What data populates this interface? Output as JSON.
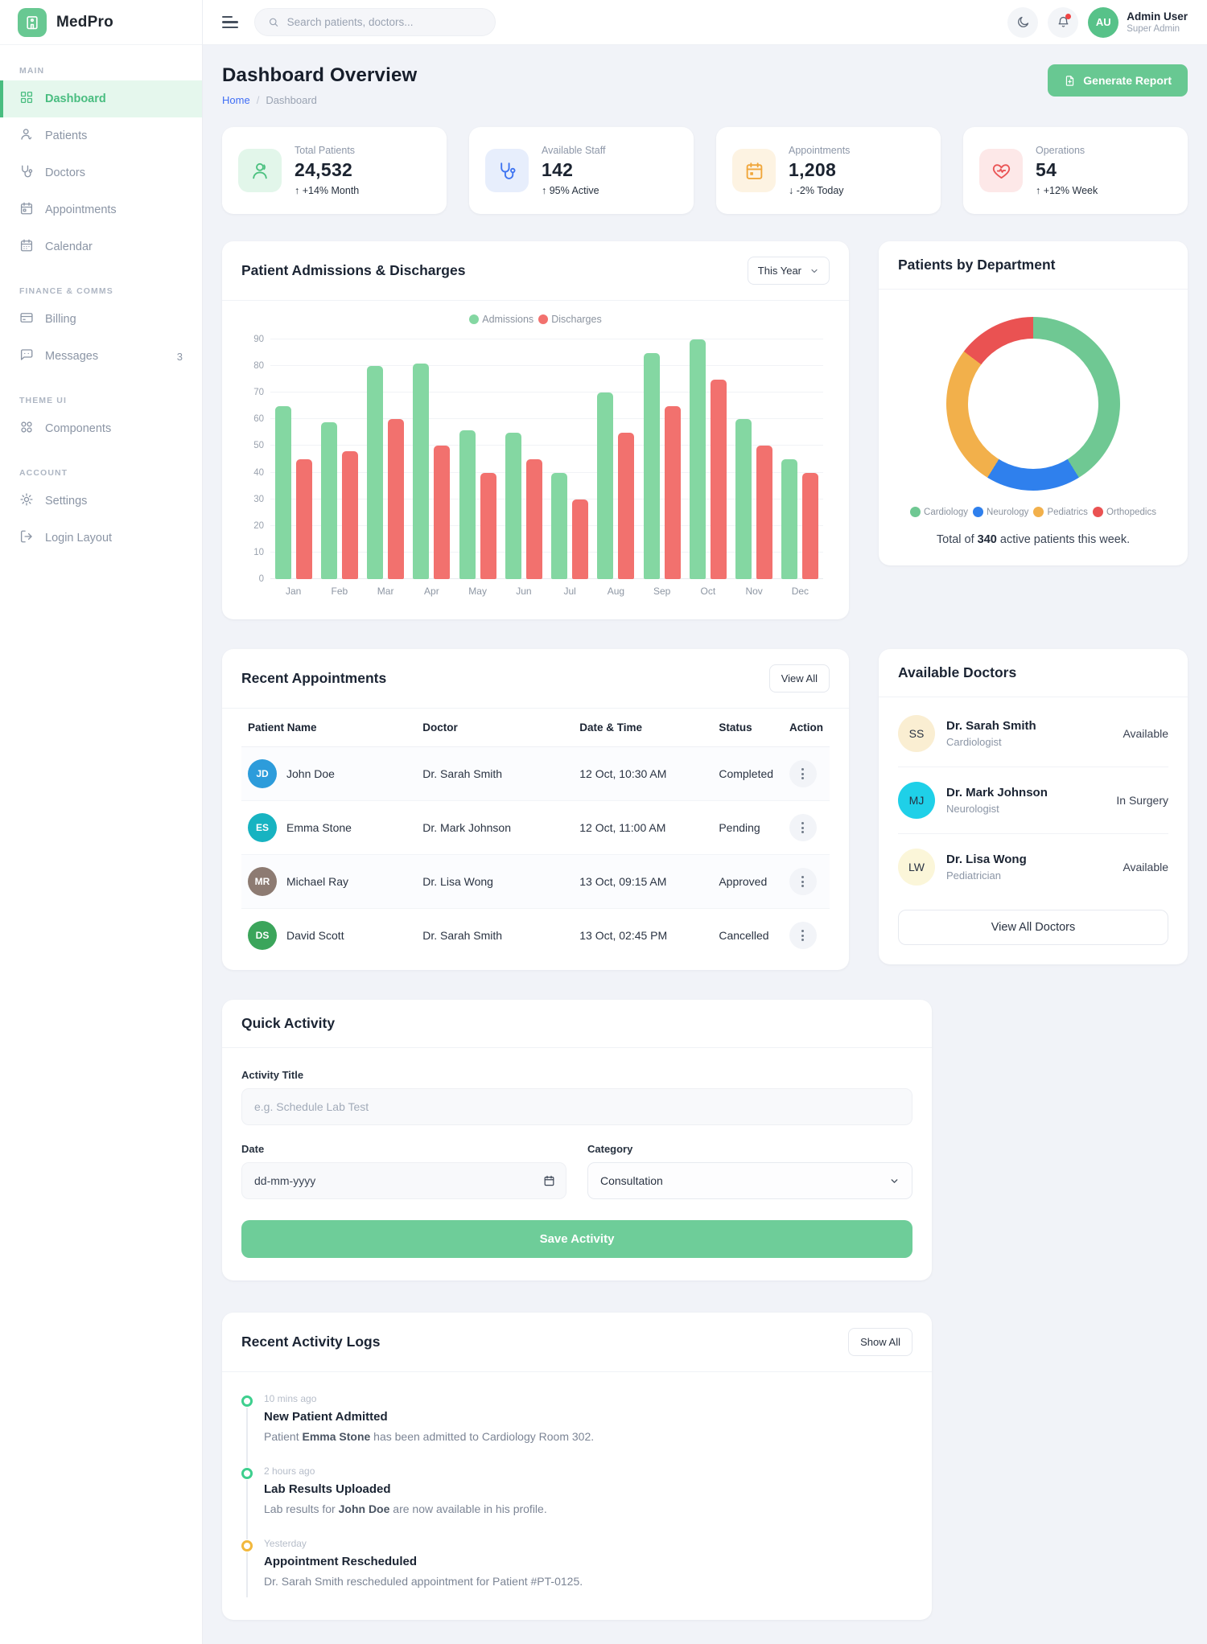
{
  "theme": {
    "primary_green": "#68c892",
    "sidebar_active_bg": "#e5f7ed",
    "link_blue": "#3f6df5"
  },
  "brand": {
    "name": "MedPro"
  },
  "header": {
    "search_placeholder": "Search patients, doctors...",
    "user": {
      "initials": "AU",
      "name": "Admin User",
      "role": "Super Admin"
    }
  },
  "sidebar": {
    "sections": [
      {
        "title": "MAIN",
        "items": [
          {
            "label": "Dashboard"
          },
          {
            "label": "Patients"
          },
          {
            "label": "Doctors"
          },
          {
            "label": "Appointments"
          },
          {
            "label": "Calendar"
          }
        ]
      },
      {
        "title": "FINANCE & COMMS",
        "items": [
          {
            "label": "Billing"
          },
          {
            "label": "Messages",
            "badge": "3"
          }
        ]
      },
      {
        "title": "THEME UI",
        "items": [
          {
            "label": "Components"
          }
        ]
      },
      {
        "title": "ACCOUNT",
        "items": [
          {
            "label": "Settings"
          },
          {
            "label": "Login Layout"
          }
        ]
      }
    ]
  },
  "page": {
    "title": "Dashboard Overview",
    "breadcrumb_home": "Home",
    "breadcrumb_sep": "/",
    "breadcrumb_current": "Dashboard",
    "generate_report": "Generate Report"
  },
  "stats": [
    {
      "label": "Total Patients",
      "value": "24,532",
      "delta": "↑ +14% Month",
      "accent": "#4cc180",
      "accent_bg": "#e2f6ea"
    },
    {
      "label": "Available Staff",
      "value": "142",
      "delta": "↑ 95% Active",
      "accent": "#3e74f1",
      "accent_bg": "#e7eefc"
    },
    {
      "label": "Appointments",
      "value": "1,208",
      "delta": "↓ -2% Today",
      "accent": "#f0a63a",
      "accent_bg": "#fdf3e2"
    },
    {
      "label": "Operations",
      "value": "54",
      "delta": "↑ +12% Week",
      "accent": "#ea5455",
      "accent_bg": "#fde8e8"
    }
  ],
  "chart_data": [
    {
      "type": "bar",
      "title": "Patient Admissions & Discharges",
      "filter": "This Year",
      "categories": [
        "Jan",
        "Feb",
        "Mar",
        "Apr",
        "May",
        "Jun",
        "Jul",
        "Aug",
        "Sep",
        "Oct",
        "Nov",
        "Dec"
      ],
      "series": [
        {
          "name": "Admissions",
          "color": "#84d7a2",
          "values": [
            65,
            59,
            80,
            81,
            56,
            55,
            40,
            70,
            85,
            90,
            60,
            45
          ]
        },
        {
          "name": "Discharges",
          "color": "#f2716e",
          "values": [
            45,
            48,
            60,
            50,
            40,
            45,
            30,
            55,
            65,
            75,
            50,
            40
          ]
        }
      ],
      "ylim": [
        0,
        90
      ],
      "ytick_step": 10,
      "grid": true,
      "legend_position": "top"
    },
    {
      "type": "pie",
      "title": "Patients by Department",
      "labels": [
        "Cardiology",
        "Neurology",
        "Pediatrics",
        "Orthopedics"
      ],
      "values": [
        140,
        60,
        90,
        50
      ],
      "colors": [
        "#6fc893",
        "#2f80ed",
        "#f2b04b",
        "#ea5252"
      ],
      "total": 340,
      "footer_prefix": "Total of ",
      "footer_bold": "340",
      "footer_suffix": " active patients this week."
    }
  ],
  "appointments": {
    "title": "Recent Appointments",
    "view_all": "View All",
    "columns": [
      "Patient Name",
      "Doctor",
      "Date & Time",
      "Status",
      "Action"
    ],
    "rows": [
      {
        "initials": "JD",
        "avatar_color": "#2d9cdb",
        "patient": "John Doe",
        "doctor": "Dr. Sarah Smith",
        "datetime": "12 Oct, 10:30 AM",
        "status": "Completed"
      },
      {
        "initials": "ES",
        "avatar_color": "#17b3c1",
        "patient": "Emma Stone",
        "doctor": "Dr. Mark Johnson",
        "datetime": "12 Oct, 11:00 AM",
        "status": "Pending"
      },
      {
        "initials": "MR",
        "avatar_color": "#8d7b72",
        "patient": "Michael Ray",
        "doctor": "Dr. Lisa Wong",
        "datetime": "13 Oct, 09:15 AM",
        "status": "Approved"
      },
      {
        "initials": "DS",
        "avatar_color": "#3ba55b",
        "patient": "David Scott",
        "doctor": "Dr. Sarah Smith",
        "datetime": "13 Oct, 02:45 PM",
        "status": "Cancelled"
      }
    ]
  },
  "doctors": {
    "title": "Available Doctors",
    "view_all": "View All Doctors",
    "items": [
      {
        "initials": "SS",
        "avatar_color": "#faeed2",
        "name": "Dr. Sarah Smith",
        "specialty": "Cardiologist",
        "status": "Available"
      },
      {
        "initials": "MJ",
        "avatar_color": "#1fd0e8",
        "name": "Dr. Mark Johnson",
        "specialty": "Neurologist",
        "status": "In Surgery"
      },
      {
        "initials": "LW",
        "avatar_color": "#fbf6d9",
        "name": "Dr. Lisa Wong",
        "specialty": "Pediatrician",
        "status": "Available"
      }
    ]
  },
  "quick_activity": {
    "title": "Quick Activity",
    "title_label": "Activity Title",
    "title_placeholder": "e.g. Schedule Lab Test",
    "date_label": "Date",
    "date_placeholder": "dd-mm-yyyy",
    "category_label": "Category",
    "category_value": "Consultation",
    "save_label": "Save Activity"
  },
  "activity_logs": {
    "title": "Recent Activity Logs",
    "show_all": "Show All",
    "items": [
      {
        "time": "10 mins ago",
        "title": "New Patient Admitted",
        "text_before": "Patient ",
        "bold": "Emma Stone",
        "text_after": " has been admitted to Cardiology Room 302.",
        "dot_color": "#3ecf8e"
      },
      {
        "time": "2 hours ago",
        "title": "Lab Results Uploaded",
        "text_before": "Lab results for ",
        "bold": "John Doe",
        "text_after": " are now available in his profile.",
        "dot_color": "#3ecf8e"
      },
      {
        "time": "Yesterday",
        "title": "Appointment Rescheduled",
        "text_before": "Dr. Sarah Smith rescheduled appointment for Patient #PT-0125.",
        "bold": "",
        "text_after": "",
        "dot_color": "#f2b83d"
      }
    ]
  }
}
